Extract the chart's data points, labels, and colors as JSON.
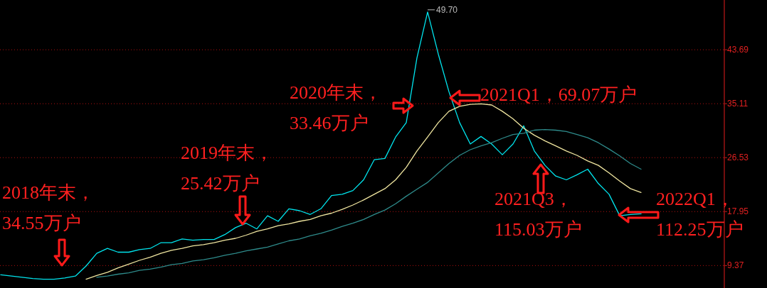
{
  "chart_data": {
    "type": "line",
    "categories": [
      null,
      null,
      null,
      null,
      null,
      null,
      null,
      null,
      null,
      null,
      null,
      null,
      null,
      null,
      null,
      null,
      null,
      null,
      null,
      null,
      null,
      null,
      null,
      null,
      null,
      null,
      null,
      null,
      null,
      null,
      null,
      null,
      null,
      null,
      null,
      null,
      null,
      null,
      null,
      null,
      null,
      null,
      null,
      null,
      null,
      null,
      null,
      null,
      null,
      null,
      null,
      null,
      null,
      null,
      null,
      null,
      null,
      null,
      null,
      null,
      null
    ],
    "series": [
      {
        "color": "#00e5ee",
        "values": [
          7.9,
          7.7,
          7.5,
          7.3,
          7.2,
          7.2,
          7.4,
          7.7,
          9.3,
          11.3,
          12.1,
          11.5,
          11.5,
          11.9,
          12.1,
          13.0,
          13.0,
          13.6,
          13.4,
          13.5,
          13.5,
          14.3,
          15.4,
          16.1,
          15.2,
          17.3,
          16.4,
          18.4,
          18.1,
          17.5,
          18.4,
          20.5,
          20.7,
          21.3,
          23.0,
          26.2,
          26.4,
          29.8,
          32.1,
          42.4,
          49.7,
          43.0,
          37.0,
          32.1,
          28.7,
          29.9,
          28.7,
          27.0,
          28.7,
          31.6,
          27.6,
          25.3,
          23.6,
          23.0,
          23.8,
          24.7,
          22.4,
          20.7,
          17.3,
          17.5,
          17.6
        ]
      },
      {
        "color": "#f0e6a0",
        "values": [
          null,
          null,
          null,
          null,
          null,
          null,
          null,
          null,
          7.2,
          7.8,
          8.3,
          9.0,
          9.6,
          10.2,
          10.7,
          11.3,
          11.8,
          12.1,
          12.5,
          12.7,
          13.0,
          13.4,
          13.7,
          14.2,
          14.8,
          15.2,
          15.7,
          16.0,
          16.4,
          16.7,
          17.3,
          17.7,
          18.3,
          19.0,
          19.8,
          20.7,
          21.6,
          23.0,
          25.0,
          27.6,
          29.8,
          32.1,
          33.9,
          34.7,
          35.0,
          35.1,
          34.9,
          33.9,
          32.7,
          31.2,
          30.1,
          29.2,
          28.4,
          27.6,
          26.9,
          26.0,
          25.3,
          24.1,
          22.8,
          21.6,
          21.0
        ]
      },
      {
        "color": "#2e8b8b",
        "values": [
          null,
          null,
          null,
          null,
          null,
          null,
          null,
          null,
          null,
          7.5,
          7.7,
          8.0,
          8.2,
          8.6,
          8.8,
          9.1,
          9.5,
          9.7,
          10.1,
          10.3,
          10.6,
          11.0,
          11.3,
          11.7,
          12.0,
          12.3,
          12.8,
          13.3,
          13.6,
          14.1,
          14.5,
          15.0,
          15.6,
          16.1,
          16.7,
          17.5,
          18.2,
          19.2,
          20.4,
          21.5,
          22.6,
          24.1,
          25.6,
          26.9,
          27.8,
          28.4,
          28.9,
          29.6,
          30.2,
          30.4,
          30.9,
          31.0,
          30.9,
          30.7,
          30.2,
          29.7,
          28.9,
          27.9,
          26.8,
          25.6,
          24.7
        ]
      }
    ],
    "ylim": [
      5.8,
      51.6
    ],
    "yticks": [
      9.37,
      17.95,
      26.53,
      35.11,
      43.69
    ],
    "grid": "y",
    "tick_labels": "y",
    "annotations": [
      "2018年末，\n34.55万户",
      "2019年末，\n25.42万户",
      "2020年末，\n33.46万户",
      "2021Q1，69.07万户",
      "2021Q3，\n115.03万户",
      "2022Q1，\n112.25万户",
      "49.70"
    ]
  }
}
